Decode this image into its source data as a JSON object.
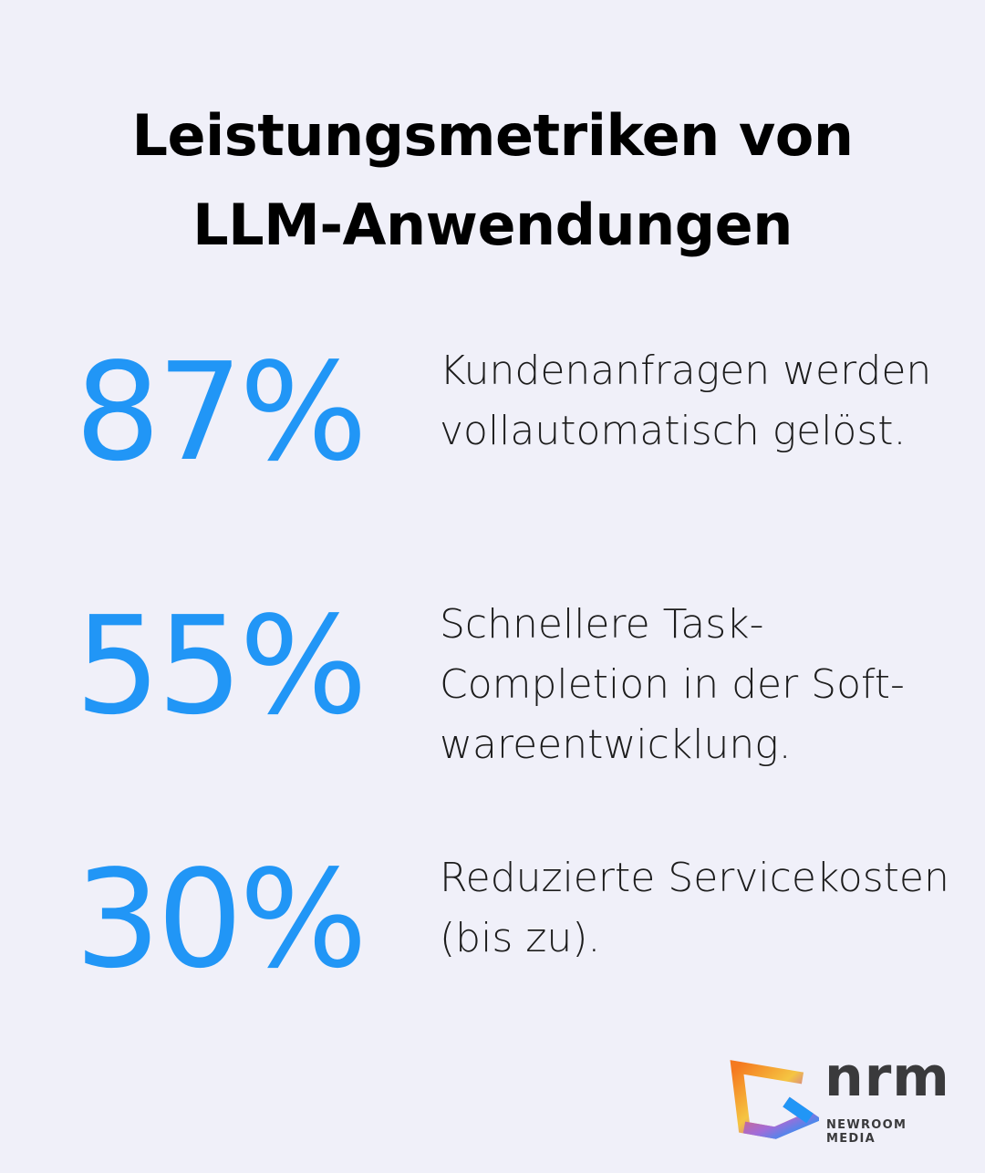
{
  "title": {
    "line1": "Leistungsmetriken von",
    "line2": "LLM-Anwendungen"
  },
  "accent_color": "#2196f6",
  "stats": [
    {
      "value": "87%",
      "description": "Kundenanfragen werden vollautomatisch gelöst."
    },
    {
      "value": "55%",
      "description": "Schnellere Task-Completion in der Soft-wareentwicklung."
    },
    {
      "value": "30%",
      "description": "Reduzierte Servicekosten (bis zu)."
    }
  ],
  "logo": {
    "mark": "nrm",
    "name": "NEWROOM MEDIA"
  }
}
